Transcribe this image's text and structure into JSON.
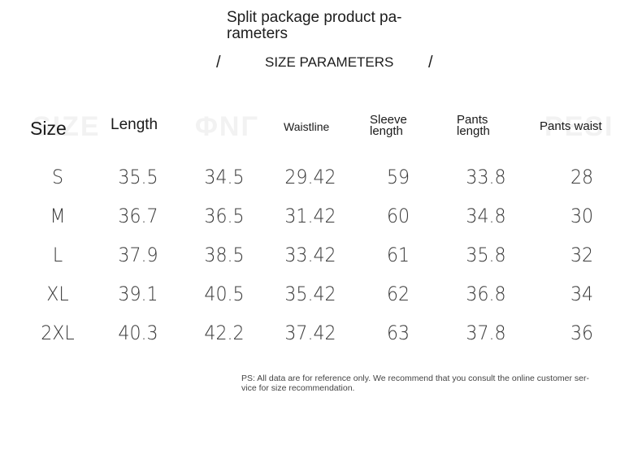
{
  "title": "Split package product pa-rameters",
  "title_line1": "Split package product pa-",
  "title_line2": "rameters",
  "subtitle": "SIZE PARAMETERS",
  "slash": "/",
  "headers": {
    "size": "Size",
    "length": "Length",
    "waistline": "Waistline",
    "sleeve_line1": "Sleeve",
    "sleeve_line2": "length",
    "pants_line1": "Pants",
    "pants_line2": "length",
    "pants_waist": "Pants waist"
  },
  "rows": [
    [
      "S",
      "35.5",
      "34.5",
      "29.42",
      "59",
      "33.8",
      "28"
    ],
    [
      "M",
      "36.7",
      "36.5",
      "31.42",
      "60",
      "34.8",
      "30"
    ],
    [
      "L",
      "37.9",
      "38.5",
      "33.42",
      "61",
      "35.8",
      "32"
    ],
    [
      "XL",
      "39.1",
      "40.5",
      "35.42",
      "62",
      "36.8",
      "34"
    ],
    [
      "2XL",
      "40.3",
      "42.2",
      "37.42",
      "63",
      "37.8",
      "36"
    ]
  ],
  "note_line1": "PS: All data are for reference only. We recommend that you consult the online customer ser-",
  "note_line2": "vice for size recommendation."
}
